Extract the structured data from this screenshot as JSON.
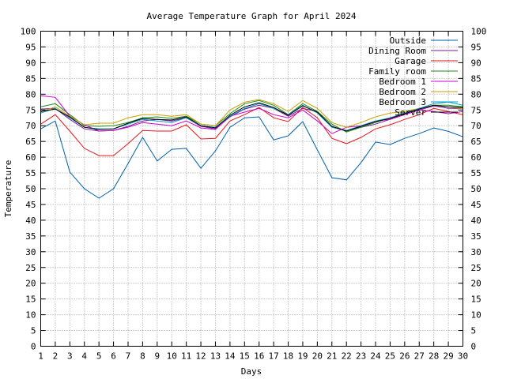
{
  "chart_data": {
    "type": "line",
    "title": "Average Temperature Graph for April 2024",
    "xlabel": "Days",
    "ylabel": "Temperature",
    "xlim": [
      1,
      30
    ],
    "ylim": [
      0,
      100
    ],
    "grid": true,
    "legend_position": "top-right",
    "x_ticks": [
      "1",
      "2",
      "3",
      "4",
      "5",
      "6",
      "7",
      "8",
      "9",
      "10",
      "11",
      "12",
      "13",
      "14",
      "15",
      "16",
      "17",
      "18",
      "19",
      "20",
      "21",
      "22",
      "23",
      "24",
      "25",
      "26",
      "27",
      "28",
      "29",
      "30"
    ],
    "y_ticks": [
      "0",
      "5",
      "10",
      "15",
      "20",
      "25",
      "30",
      "35",
      "40",
      "45",
      "50",
      "55",
      "60",
      "65",
      "70",
      "75",
      "80",
      "85",
      "90",
      "95",
      "100"
    ],
    "x": [
      1,
      2,
      3,
      4,
      5,
      6,
      7,
      8,
      9,
      10,
      11,
      12,
      13,
      14,
      15,
      16,
      17,
      18,
      19,
      20,
      21,
      22,
      23,
      24,
      25,
      26,
      27,
      28,
      29,
      30
    ],
    "series": [
      {
        "name": "Outside",
        "color": "#0060ad",
        "values": [
          69,
          71.5,
          55.3,
          50,
          47,
          50,
          58,
          66.3,
          58.8,
          62.5,
          62.8,
          56.5,
          62,
          69.5,
          72.5,
          72.8,
          65.5,
          66.8,
          71.3,
          62.3,
          53.5,
          52.8,
          58.3,
          64.8,
          64,
          66,
          67.5,
          69.3,
          68.2,
          66.5
        ]
      },
      {
        "name": "Dining Room",
        "color": "#7a1a9b",
        "values": [
          75.3,
          75.5,
          72,
          69,
          68.3,
          68.5,
          69.8,
          71.5,
          72,
          71.5,
          72.5,
          69.8,
          69,
          72.8,
          75.3,
          76.5,
          75.5,
          73,
          75.5,
          74.5,
          69.5,
          68.5,
          69.5,
          70.5,
          72,
          73.5,
          75,
          76.3,
          75.5,
          75.5
        ]
      },
      {
        "name": "Garage",
        "color": "#e8161b",
        "values": [
          70.5,
          73.5,
          68.3,
          62.8,
          60.5,
          60.5,
          64.3,
          68.5,
          68.3,
          68.3,
          70.3,
          65.8,
          66,
          71.5,
          73.5,
          75.8,
          72.5,
          71.3,
          75.8,
          72.5,
          66,
          64.3,
          66.3,
          69,
          70.3,
          72,
          73.5,
          75.5,
          74.5,
          73.5
        ]
      },
      {
        "name": "Family room",
        "color": "#1a8a1a",
        "values": [
          76,
          77,
          73.5,
          70,
          69.8,
          70,
          71,
          72.5,
          72.8,
          72.3,
          73,
          70.5,
          70,
          73.8,
          77,
          78,
          76.5,
          73.5,
          77,
          74.5,
          70.5,
          68,
          69.5,
          71,
          72.5,
          74,
          75.5,
          76.5,
          76.5,
          76
        ]
      },
      {
        "name": "Bedroom 1",
        "color": "#cc00cc",
        "values": [
          79.5,
          79,
          73,
          70.3,
          68.3,
          68.5,
          69.5,
          71,
          70.5,
          70,
          71.5,
          69.3,
          68.8,
          73,
          74.3,
          75.5,
          73.5,
          72.5,
          75,
          71.5,
          67.5,
          69.5,
          70,
          71.5,
          72,
          73.5,
          75,
          74.5,
          73.8,
          74.5
        ]
      },
      {
        "name": "Bedroom 2",
        "color": "#c8a000",
        "values": [
          74.3,
          76,
          73,
          70.3,
          70.8,
          70.8,
          72.5,
          73.5,
          73.5,
          73,
          73.5,
          70.5,
          70,
          75,
          77.5,
          78.3,
          77,
          74.5,
          78,
          75.5,
          71,
          69.5,
          71,
          72.8,
          74,
          74.5,
          75.5,
          76.5,
          76,
          75.5
        ]
      },
      {
        "name": "Bedroom 3",
        "color": "#00a0c8",
        "values": [
          74,
          75.5,
          72.5,
          69.5,
          69,
          69,
          70.5,
          72,
          71.5,
          71,
          72.5,
          70,
          69.5,
          73,
          75.5,
          77,
          75.5,
          73.5,
          76.5,
          74,
          69.5,
          68.5,
          70,
          71.5,
          72.5,
          74,
          75.5,
          77,
          77.5,
          76.5
        ]
      },
      {
        "name": "Server",
        "color": "#000000",
        "values": [
          74.5,
          75.3,
          72.8,
          69.5,
          68.8,
          69,
          70.8,
          72.3,
          72,
          71.8,
          72.8,
          70,
          69.3,
          73.3,
          76,
          77.3,
          75.8,
          73.3,
          76.3,
          74.3,
          69.8,
          68.3,
          69.8,
          71.3,
          72.3,
          73.8,
          75.3,
          76.5,
          76,
          75.8
        ]
      }
    ]
  }
}
